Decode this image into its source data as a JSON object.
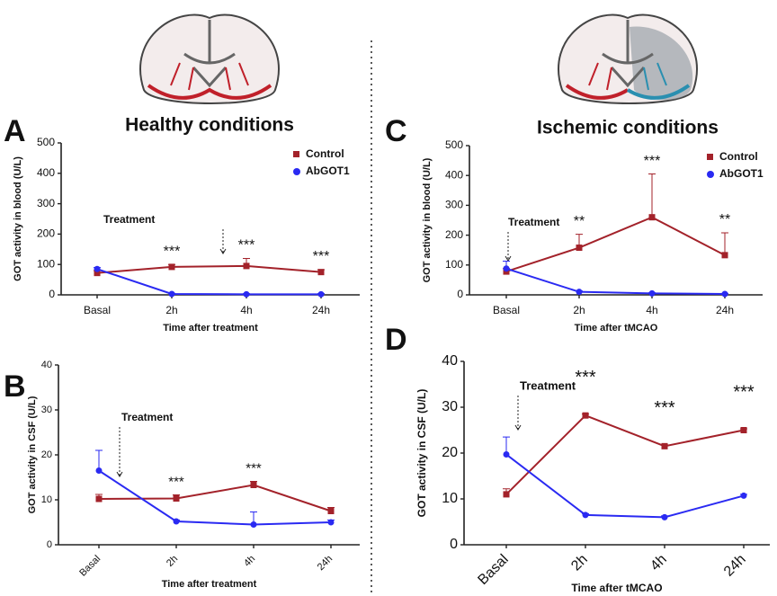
{
  "chart_data": [
    {
      "type": "line",
      "panel": "A",
      "title": "Healthy conditions",
      "x_label": "Time after treatment",
      "y_label": "GOT activity in blood (U/L)",
      "categories": [
        "Basal",
        "2h",
        "4h",
        "24h"
      ],
      "ylim": [
        0,
        500
      ],
      "yticks": [
        0,
        100,
        200,
        300,
        400,
        500
      ],
      "legend": "upper right",
      "xtick_rotation": 0,
      "treatment_label": "Treatment",
      "series": [
        {
          "name": "Control",
          "color": "#a3222a",
          "marker": "square",
          "values": [
            72,
            92,
            95,
            75
          ],
          "errors": [
            8,
            8,
            25,
            8
          ]
        },
        {
          "name": "AbGOT1",
          "color": "#2a2af2",
          "marker": "circle",
          "values": [
            85,
            3,
            2,
            2
          ],
          "errors": [
            5,
            2,
            2,
            2
          ]
        }
      ],
      "annotations": [
        {
          "text": "***",
          "category": "2h"
        },
        {
          "text": "***",
          "category": "4h"
        },
        {
          "text": "***",
          "category": "24h"
        }
      ]
    },
    {
      "type": "line",
      "panel": "B",
      "x_label": "Time after treatment",
      "y_label": "GOT activity in CSF (U/L)",
      "categories": [
        "Basal",
        "2h",
        "4h",
        "24h"
      ],
      "ylim": [
        0,
        40
      ],
      "yticks": [
        0,
        10,
        20,
        30,
        40
      ],
      "xtick_rotation": 45,
      "treatment_label": "Treatment",
      "series": [
        {
          "name": "Control",
          "color": "#a3222a",
          "marker": "square",
          "values": [
            10.2,
            10.3,
            13.3,
            7.5
          ],
          "errors": [
            1,
            0.8,
            0.8,
            0.8
          ]
        },
        {
          "name": "AbGOT1",
          "color": "#2a2af2",
          "marker": "circle",
          "values": [
            16.5,
            5.2,
            4.5,
            5
          ],
          "errors": [
            4.5,
            0.3,
            2.8,
            0.5
          ]
        }
      ],
      "annotations": [
        {
          "text": "***",
          "category": "2h"
        },
        {
          "text": "***",
          "category": "4h"
        }
      ]
    },
    {
      "type": "line",
      "panel": "C",
      "title": "Ischemic conditions",
      "x_label": "Time after tMCAO",
      "y_label": "GOT activity in blood (U/L)",
      "categories": [
        "Basal",
        "2h",
        "4h",
        "24h"
      ],
      "ylim": [
        0,
        500
      ],
      "yticks": [
        0,
        100,
        200,
        300,
        400,
        500
      ],
      "legend": "upper right",
      "xtick_rotation": 0,
      "treatment_label": "Treatment",
      "series": [
        {
          "name": "Control",
          "color": "#a3222a",
          "marker": "square",
          "values": [
            78,
            158,
            260,
            133
          ],
          "errors": [
            10,
            45,
            145,
            75
          ]
        },
        {
          "name": "AbGOT1",
          "color": "#2a2af2",
          "marker": "circle",
          "values": [
            88,
            10,
            5,
            3
          ],
          "errors": [
            25,
            3,
            2,
            2
          ]
        }
      ],
      "annotations": [
        {
          "text": "**",
          "category": "2h"
        },
        {
          "text": "***",
          "category": "4h"
        },
        {
          "text": "**",
          "category": "24h"
        }
      ]
    },
    {
      "type": "line",
      "panel": "D",
      "x_label": "Time after tMCAO",
      "y_label": "GOT activity in CSF (U/L)",
      "categories": [
        "Basal",
        "2h",
        "4h",
        "24h"
      ],
      "ylim": [
        0,
        40
      ],
      "yticks": [
        0,
        10,
        20,
        30,
        40
      ],
      "xtick_rotation": 45,
      "treatment_label": "Treatment",
      "series": [
        {
          "name": "Control",
          "color": "#a3222a",
          "marker": "square",
          "values": [
            11,
            28.2,
            21.5,
            25
          ],
          "errors": [
            1.2,
            0.3,
            0.3,
            0.3
          ]
        },
        {
          "name": "AbGOT1",
          "color": "#2a2af2",
          "marker": "circle",
          "values": [
            19.7,
            6.5,
            6,
            10.7
          ],
          "errors": [
            3.8,
            0.3,
            0.3,
            0.3
          ]
        }
      ],
      "annotations": [
        {
          "text": "***",
          "category": "2h"
        },
        {
          "text": "***",
          "category": "4h"
        },
        {
          "text": "***",
          "category": "24h"
        }
      ]
    }
  ]
}
